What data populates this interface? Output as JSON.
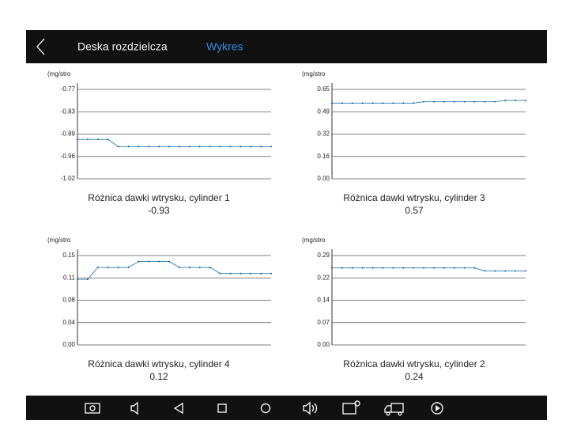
{
  "header": {
    "title": "Deska rozdzielcza",
    "tab": "Wykres"
  },
  "chart_data": [
    {
      "type": "line",
      "title": "Różnica dawki wtrysku, cylinder 1",
      "current_value": -0.93,
      "ylabel": "(mg/stro",
      "color": "#3a8fc7",
      "grid": true,
      "ylim": [
        -1.02,
        -0.77
      ],
      "yticks": [
        -1.02,
        {
          "value": -0.9575,
          "label": "-0.96"
        },
        {
          "value": -0.895,
          "label": "-0.89"
        },
        {
          "value": -0.8325,
          "label": "-0.83"
        },
        -0.77
      ],
      "values": [
        -0.91,
        -0.91,
        -0.91,
        -0.91,
        -0.93,
        -0.93,
        -0.93,
        -0.93,
        -0.93,
        -0.93,
        -0.93,
        -0.93,
        -0.93,
        -0.93,
        -0.93,
        -0.93,
        -0.93,
        -0.93,
        -0.93,
        -0.93
      ]
    },
    {
      "type": "line",
      "title": "Różnica dawki wtrysku, cylinder 3",
      "current_value": 0.57,
      "ylabel": "(mg/stro",
      "color": "#3a8fc7",
      "grid": true,
      "ylim": [
        0,
        0.65
      ],
      "yticks": [
        {
          "value": 0,
          "label": "0.00"
        },
        {
          "value": 0.1625,
          "label": "0.16"
        },
        {
          "value": 0.325,
          "label": "0.32"
        },
        {
          "value": 0.4875,
          "label": "0.49"
        },
        0.65
      ],
      "values": [
        0.55,
        0.55,
        0.55,
        0.55,
        0.55,
        0.55,
        0.55,
        0.55,
        0.55,
        0.56,
        0.56,
        0.56,
        0.56,
        0.56,
        0.56,
        0.56,
        0.56,
        0.57,
        0.57,
        0.57
      ]
    },
    {
      "type": "line",
      "title": "Różnica dawki wtrysku, cylinder 4",
      "current_value": 0.12,
      "ylabel": "(mg/stro",
      "color": "#3a8fc7",
      "grid": true,
      "ylim": [
        0,
        0.15
      ],
      "yticks": [
        {
          "value": 0,
          "label": "0.00"
        },
        {
          "value": 0.0375,
          "label": "0.04"
        },
        {
          "value": 0.075,
          "label": "0.08"
        },
        {
          "value": 0.1125,
          "label": "0.11"
        },
        0.15
      ],
      "values": [
        0.11,
        0.11,
        0.13,
        0.13,
        0.13,
        0.13,
        0.14,
        0.14,
        0.14,
        0.14,
        0.13,
        0.13,
        0.13,
        0.13,
        0.12,
        0.12,
        0.12,
        0.12,
        0.12,
        0.12
      ]
    },
    {
      "type": "line",
      "title": "Różnica dawki wtrysku, cylinder 2",
      "current_value": 0.24,
      "ylabel": "(mg/stro",
      "color": "#3a8fc7",
      "grid": true,
      "ylim": [
        0,
        0.29
      ],
      "yticks": [
        {
          "value": 0,
          "label": "0.00"
        },
        {
          "value": 0.0725,
          "label": "0.07"
        },
        {
          "value": 0.145,
          "label": "0.14"
        },
        {
          "value": 0.2175,
          "label": "0.22"
        },
        0.29
      ],
      "values": [
        0.25,
        0.25,
        0.25,
        0.25,
        0.25,
        0.25,
        0.25,
        0.25,
        0.25,
        0.25,
        0.25,
        0.25,
        0.25,
        0.25,
        0.25,
        0.24,
        0.24,
        0.24,
        0.24,
        0.24
      ]
    }
  ]
}
